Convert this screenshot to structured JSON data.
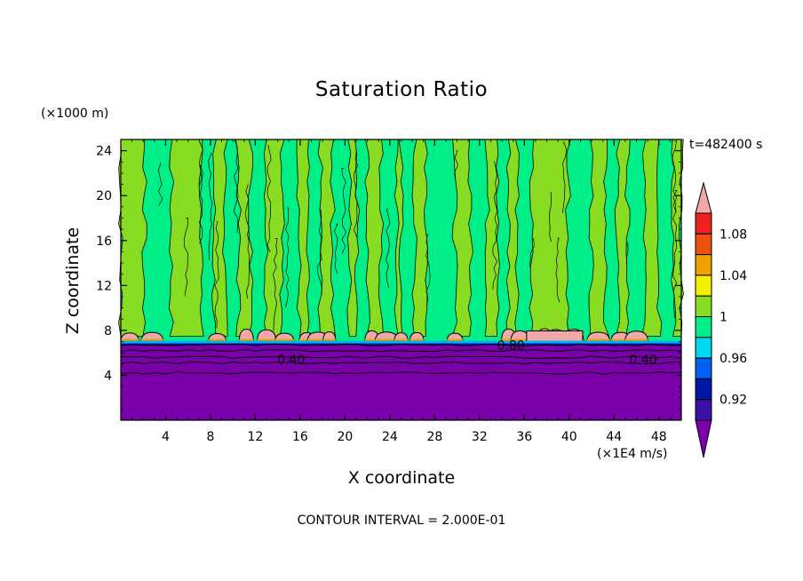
{
  "chart_data": {
    "type": "heatmap",
    "title": "Saturation Ratio",
    "xlabel": "X coordinate",
    "ylabel": "Z coordinate",
    "x_unit": "(×1E4 m/s)",
    "z_unit": "(×1000 m)",
    "time_label": "t=482400 s",
    "footer": "CONTOUR INTERVAL = 2.000E-01",
    "xlim": [
      0,
      50
    ],
    "ylim": [
      0,
      25
    ],
    "x_ticks": [
      4,
      8,
      12,
      16,
      20,
      24,
      28,
      32,
      36,
      40,
      44,
      48
    ],
    "y_ticks": [
      4,
      8,
      12,
      16,
      20,
      24
    ],
    "contour_labels": [
      {
        "text": "0.40",
        "x": 15.2,
        "y": 5.4
      },
      {
        "text": "0.80",
        "x": 34.8,
        "y": 6.7
      },
      {
        "text": "0.40",
        "x": 46.6,
        "y": 5.4
      }
    ],
    "colorbar": {
      "labels": [
        "1.08",
        "1.04",
        "1",
        "0.96",
        "0.92"
      ],
      "levels": [
        0.92,
        0.94,
        0.96,
        0.98,
        1.0,
        1.02,
        1.04,
        1.06,
        1.08,
        1.1
      ],
      "colors": [
        "#7a00aa",
        "#3a10a8",
        "#0018a8",
        "#0060f0",
        "#00d8f0",
        "#00ee88",
        "#88dd22",
        "#f0f000",
        "#f0a000",
        "#f05010",
        "#ee2020",
        "#f0a8a8"
      ]
    },
    "fields": {
      "lower_layer_color": "#7a00aa",
      "upper_low_color": "#00ee88",
      "upper_high_color": "#88dd22",
      "peak_color": "#f0a8a8",
      "cloud_base_z": 7.0
    }
  }
}
